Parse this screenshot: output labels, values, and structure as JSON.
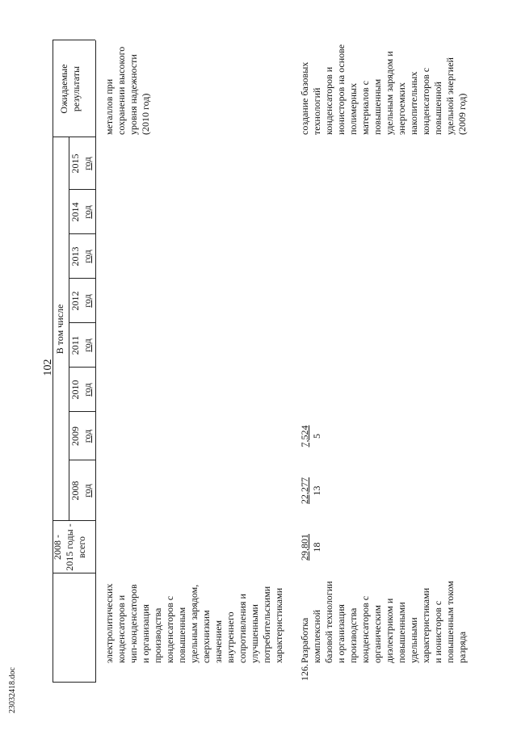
{
  "page_number": "102",
  "header": {
    "total": [
      "2008 -",
      "2015 годы -",
      "всего"
    ],
    "subheader": "В том числе",
    "years": [
      [
        "2008",
        "год"
      ],
      [
        "2009",
        "год"
      ],
      [
        "2010",
        "год"
      ],
      [
        "2011",
        "год"
      ],
      [
        "2012",
        "год"
      ],
      [
        "2013",
        "год"
      ],
      [
        "2014",
        "год"
      ],
      [
        "2015",
        "год"
      ]
    ],
    "results": [
      "Ожидаемые",
      "результаты"
    ]
  },
  "rows": [
    {
      "description": [
        "электролитических",
        "конденсаторов и",
        "чип-конденсаторов",
        "и организация",
        "производства",
        "конденсаторов с",
        "повышенным",
        "удельным зарядом,",
        "сверхнизким",
        "значением",
        "внутреннего",
        "сопротивления и",
        "улучшенными",
        "потребительскими",
        "характеристиками"
      ],
      "results": [
        "металлов при",
        "сохранении высокого",
        "уровня надежности",
        "(2010 год)"
      ]
    },
    {
      "number": "126.",
      "description": [
        "Разработка",
        "комплексной",
        "базовой технологии",
        "и организация",
        "производства",
        "конденсаторов с",
        "органическим",
        "диэлектриком и",
        "повышенными",
        "удельными",
        "характеристиками",
        "и ионисторов с",
        "повышенным током",
        "разряда"
      ],
      "total": [
        "29,801",
        "18"
      ],
      "values": [
        [
          "22,277",
          "13"
        ],
        [
          "7,524",
          "5"
        ]
      ],
      "results": [
        "создание базовых",
        "технологий",
        "конденсаторов и",
        "ионисторов на основе",
        "полимерных",
        "материалов с",
        "повышенным",
        "удельным зарядом и",
        "энергоемких",
        "накопительных",
        "конденсаторов с",
        "повышенной",
        "удельной энергией",
        "(2009 год)"
      ]
    }
  ],
  "footer": "23032418.doc"
}
